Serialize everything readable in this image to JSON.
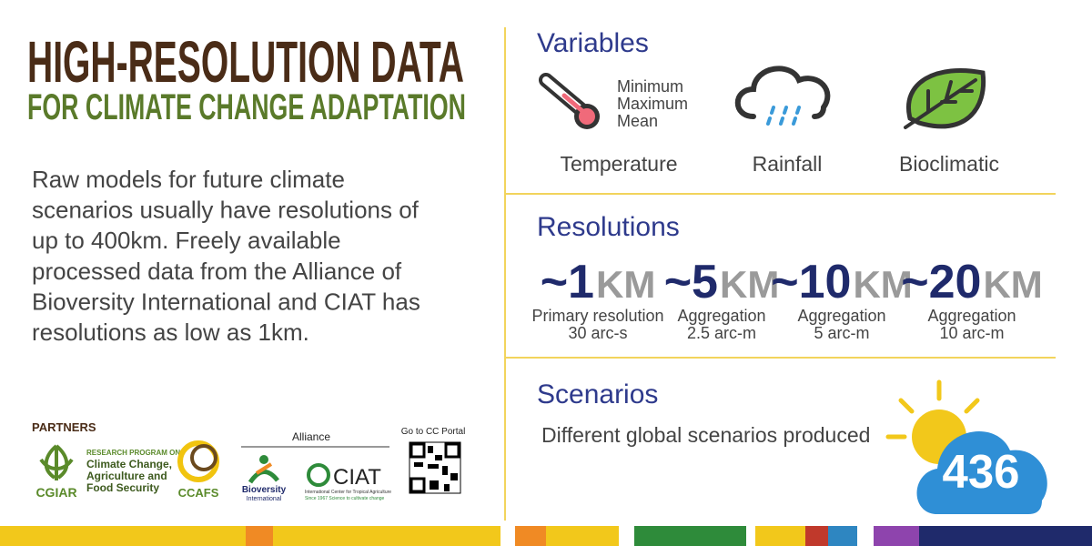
{
  "header": {
    "title_line1": "HIGH-RESOLUTION DATA",
    "title_line2": "FOR CLIMATE CHANGE ADAPTATION"
  },
  "description": [
    "Raw models for future climate",
    "scenarios usually have resolutions of",
    "up to 400km. Freely available",
    "processed data from the Alliance of",
    "Bioversity International and CIAT has",
    "resolutions as low as 1km."
  ],
  "partners": {
    "heading": "PARTNERS",
    "cgiar": "CGIAR",
    "program_label": "RESEARCH PROGRAM ON",
    "program_name": [
      "Climate Change,",
      "Agriculture and",
      "Food Security"
    ],
    "ccafs": "CCAFS",
    "alliance": "Alliance",
    "bioversity": [
      "Bioversity",
      "International"
    ],
    "ciat": "CIAT",
    "ciat_name": "International Center for Tropical Agriculture",
    "ciat_tagline": "Since 1967 Science to cultivate change",
    "portal": "Go to CC Portal"
  },
  "variables": {
    "heading": "Variables",
    "temperature_stats": [
      "Minimum",
      "Maximum",
      "Mean"
    ],
    "items": [
      "Temperature",
      "Rainfall",
      "Bioclimatic"
    ]
  },
  "resolutions": {
    "heading": "Resolutions",
    "items": [
      {
        "value": "~1",
        "unit": "KM",
        "label": "Primary resolution",
        "detail": "30 arc-s"
      },
      {
        "value": "~5",
        "unit": "KM",
        "label": "Aggregation",
        "detail": "2.5 arc-m"
      },
      {
        "value": "~10",
        "unit": "KM",
        "label": "Aggregation",
        "detail": "5 arc-m"
      },
      {
        "value": "~20",
        "unit": "KM",
        "label": "Aggregation",
        "detail": "10 arc-m"
      }
    ]
  },
  "scenarios": {
    "heading": "Scenarios",
    "text": "Different global scenarios produced",
    "count": 436
  }
}
